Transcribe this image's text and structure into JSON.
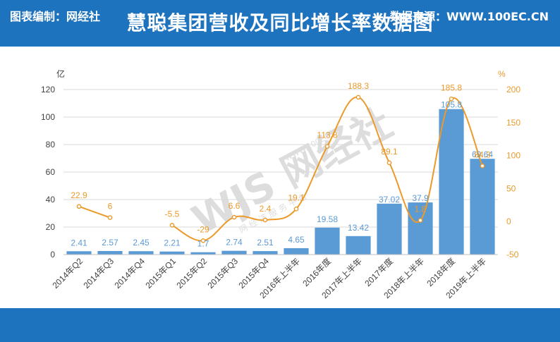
{
  "header": {
    "title": "慧聪集团营收及同比增长率数据图"
  },
  "footer": {
    "left": "图表编制：网经社",
    "right": "数据来源：WWW.100EC.CN"
  },
  "watermark": {
    "text": "WJS 网经社",
    "subtext": "网 经 济 服 务 平 台",
    "url": "WWW.100EC.CN"
  },
  "colors": {
    "brand": "#1e73be",
    "bar": "#5b9bd5",
    "line": "#eb9a2a",
    "axis_left": "#404040",
    "axis_right": "#eb9a2a"
  },
  "chart_data": {
    "type": "bar",
    "categories": [
      "2014年Q2",
      "2014年Q3",
      "2014年Q4",
      "2015年Q1",
      "2015年Q2",
      "2015年Q3",
      "2015年Q4",
      "2016年上半年",
      "2016年度",
      "2017年上半年",
      "2017年度",
      "2018年上半年",
      "2018年度",
      "2019年上半年"
    ],
    "series": [
      {
        "type": "bar",
        "axis": "left",
        "values": [
          2.41,
          2.57,
          2.45,
          2.21,
          1.7,
          2.74,
          2.51,
          4.65,
          19.58,
          13.42,
          37.02,
          37.9,
          105.8,
          69.64
        ],
        "labels": [
          "2.41",
          "2.57",
          "2.45",
          "2.21",
          "1.7",
          "2.74",
          "2.51",
          "4.65",
          "19.58",
          "13.42",
          "37.02",
          "37.9",
          "105.8",
          "69.64"
        ]
      },
      {
        "type": "line",
        "axis": "right",
        "values": [
          22.9,
          6,
          null,
          -5.5,
          -29,
          6.6,
          2.4,
          19.1,
          113.8,
          188.3,
          89.1,
          1.8,
          185.8,
          84.3
        ],
        "labels": [
          "22.9",
          "6",
          "",
          "-5.5",
          "-29",
          "6.6",
          "2.4",
          "19.1",
          "113.8",
          "188.3",
          "89.1",
          "1.8",
          "185.8",
          "84.3"
        ]
      }
    ],
    "y_left": {
      "unit": "亿",
      "ylim": [
        0,
        120
      ],
      "ticks": [
        "0",
        "20",
        "40",
        "60",
        "80",
        "100",
        "120"
      ]
    },
    "y_right": {
      "unit": "%",
      "ylim": [
        -50,
        200
      ],
      "ticks": [
        "-50",
        "0",
        "50",
        "100",
        "150",
        "200"
      ]
    },
    "grid": true,
    "legend": "none"
  }
}
